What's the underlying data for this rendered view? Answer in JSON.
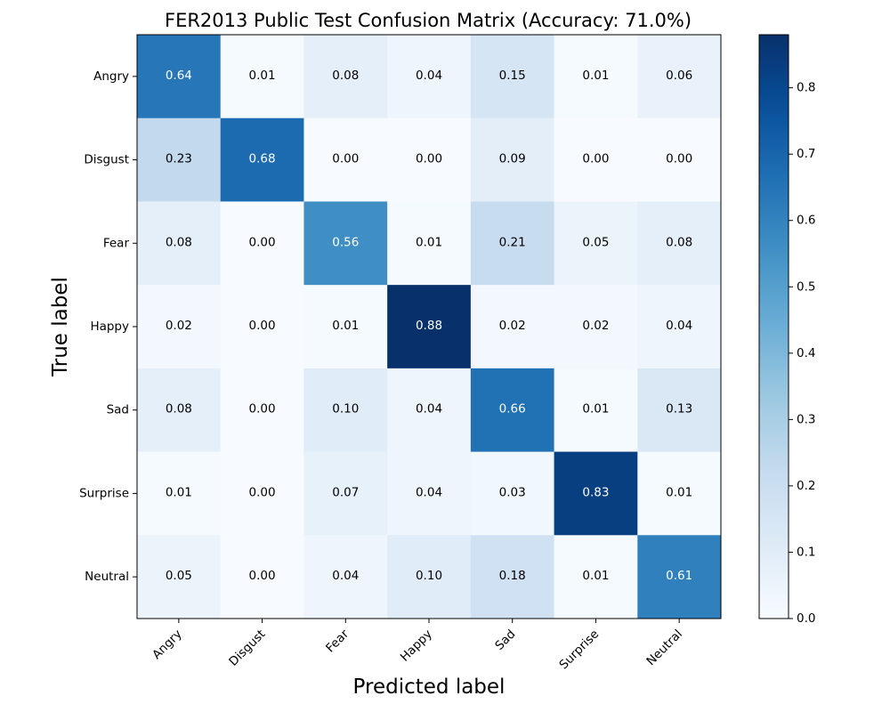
{
  "chart_data": {
    "type": "heatmap",
    "title": "FER2013 Public Test Confusion Matrix (Accuracy: 71.0%)",
    "xlabel": "Predicted label",
    "ylabel": "True label",
    "x_categories": [
      "Angry",
      "Disgust",
      "Fear",
      "Happy",
      "Sad",
      "Surprise",
      "Neutral"
    ],
    "y_categories": [
      "Angry",
      "Disgust",
      "Fear",
      "Happy",
      "Sad",
      "Surprise",
      "Neutral"
    ],
    "values": [
      [
        0.64,
        0.01,
        0.08,
        0.04,
        0.15,
        0.01,
        0.06
      ],
      [
        0.23,
        0.68,
        0.0,
        0.0,
        0.09,
        0.0,
        0.0
      ],
      [
        0.08,
        0.0,
        0.56,
        0.01,
        0.21,
        0.05,
        0.08
      ],
      [
        0.02,
        0.0,
        0.01,
        0.88,
        0.02,
        0.02,
        0.04
      ],
      [
        0.08,
        0.0,
        0.1,
        0.04,
        0.66,
        0.01,
        0.13
      ],
      [
        0.01,
        0.0,
        0.07,
        0.04,
        0.03,
        0.83,
        0.01
      ],
      [
        0.05,
        0.0,
        0.04,
        0.1,
        0.18,
        0.01,
        0.61
      ]
    ],
    "colormap": "Blues",
    "colorbar": {
      "range": [
        0.0,
        0.88
      ],
      "ticks": [
        0.0,
        0.1,
        0.2,
        0.3,
        0.4,
        0.5,
        0.6,
        0.7,
        0.8
      ],
      "tick_labels": [
        "0.0",
        "0.1",
        "0.2",
        "0.3",
        "0.4",
        "0.5",
        "0.6",
        "0.7",
        "0.8"
      ]
    },
    "colors": {
      "text_dark": "#000000",
      "text_light": "#ffffff"
    }
  }
}
